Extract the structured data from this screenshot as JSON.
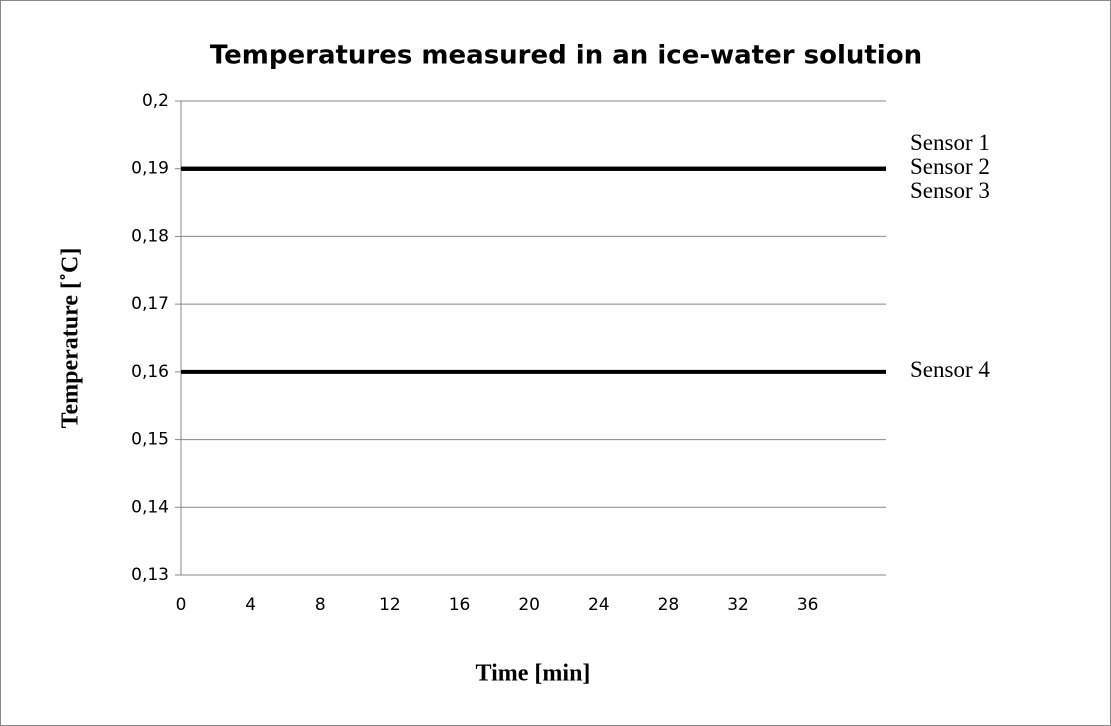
{
  "chart_data": {
    "type": "line",
    "title": "Temperatures measured in an ice-water solution",
    "x_label": "Time [min]",
    "y_label": "Temperature [˚C]",
    "x": [
      0,
      40.5
    ],
    "series": [
      {
        "name": "Sensor 1",
        "color": "#000000",
        "values": [
          0.19,
          0.19
        ]
      },
      {
        "name": "Sensor 2",
        "color": "#000000",
        "values": [
          0.19,
          0.19
        ]
      },
      {
        "name": "Sensor 3",
        "color": "#000000",
        "values": [
          0.19,
          0.19
        ]
      },
      {
        "name": "Sensor 4",
        "color": "#000000",
        "values": [
          0.16,
          0.16
        ]
      }
    ],
    "xlim": [
      0,
      40.5
    ],
    "xticks": [
      0,
      4,
      8,
      12,
      16,
      20,
      24,
      28,
      32,
      36
    ],
    "ylim": [
      0.13,
      0.2
    ],
    "yticks": [
      {
        "value": 0.13,
        "label": "0,13"
      },
      {
        "value": 0.14,
        "label": "0,14"
      },
      {
        "value": 0.15,
        "label": "0,15"
      },
      {
        "value": 0.16,
        "label": "0,16"
      },
      {
        "value": 0.17,
        "label": "0,17"
      },
      {
        "value": 0.18,
        "label": "0,18"
      },
      {
        "value": 0.19,
        "label": "0,19"
      },
      {
        "value": 0.2,
        "label": "0,2"
      }
    ],
    "grid": true,
    "legend": "right"
  }
}
